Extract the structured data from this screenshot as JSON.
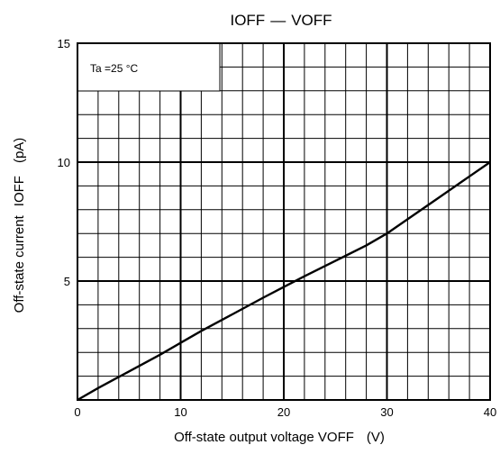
{
  "chart_data": {
    "type": "line",
    "title_main": "I",
    "title_sub_1": "OFF",
    "title_dash": "—",
    "title_v": "V",
    "title_sub_2": "OFF",
    "xlabel_main": "Off-state output voltage V",
    "xlabel_sub": "OFF",
    "xlabel_unit": "(V)",
    "ylabel_main": "Off-state current",
    "ylabel_sym": "I",
    "ylabel_sub": "OFF",
    "ylabel_unit": "(pA)",
    "annotation": "Ta =25 °C",
    "xlim": [
      0,
      40
    ],
    "ylim": [
      0,
      15
    ],
    "x_major_ticks": [
      "0",
      "10",
      "20",
      "30",
      "40"
    ],
    "y_major_ticks": [
      "5",
      "10",
      "15"
    ],
    "grid": true,
    "series": [
      {
        "x": [
          0,
          2,
          5,
          8,
          10,
          12,
          15,
          18,
          20,
          22,
          25,
          28,
          30,
          32,
          35,
          38,
          40
        ],
        "y": [
          0,
          0.5,
          1.2,
          1.9,
          2.4,
          2.9,
          3.6,
          4.3,
          4.75,
          5.2,
          5.85,
          6.5,
          7.0,
          7.6,
          8.5,
          9.4,
          10.0
        ]
      }
    ]
  }
}
